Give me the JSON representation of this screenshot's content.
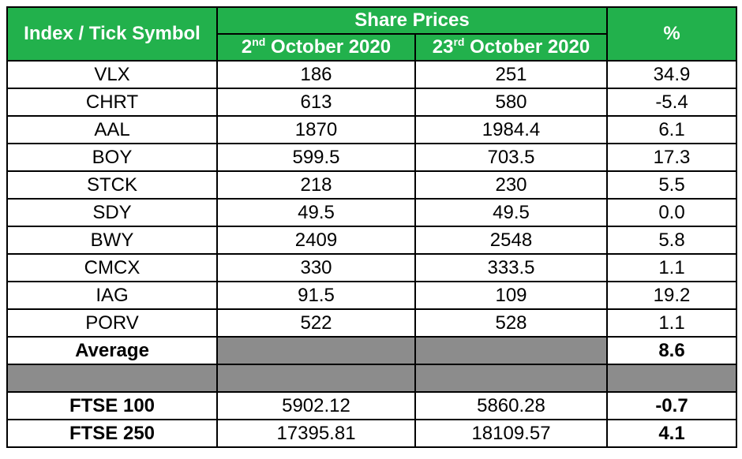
{
  "header": {
    "symbol_label": "Index / Tick Symbol",
    "share_prices_label": "Share Prices",
    "date1": {
      "day": "2",
      "suffix": "nd",
      "rest": " October 2020"
    },
    "date2": {
      "day": "23",
      "suffix": "rd",
      "rest": " October 2020"
    },
    "percent_label": "%"
  },
  "rows": [
    {
      "symbol": "VLX",
      "p1": "186",
      "p2": "251",
      "pct": "34.9"
    },
    {
      "symbol": "CHRT",
      "p1": "613",
      "p2": "580",
      "pct": "-5.4"
    },
    {
      "symbol": "AAL",
      "p1": "1870",
      "p2": "1984.4",
      "pct": "6.1"
    },
    {
      "symbol": "BOY",
      "p1": "599.5",
      "p2": "703.5",
      "pct": "17.3"
    },
    {
      "symbol": "STCK",
      "p1": "218",
      "p2": "230",
      "pct": "5.5"
    },
    {
      "symbol": "SDY",
      "p1": "49.5",
      "p2": "49.5",
      "pct": "0.0"
    },
    {
      "symbol": "BWY",
      "p1": "2409",
      "p2": "2548",
      "pct": "5.8"
    },
    {
      "symbol": "CMCX",
      "p1": "330",
      "p2": "333.5",
      "pct": "1.1"
    },
    {
      "symbol": "IAG",
      "p1": "91.5",
      "p2": "109",
      "pct": "19.2"
    },
    {
      "symbol": "PORV",
      "p1": "522",
      "p2": "528",
      "pct": "1.1"
    }
  ],
  "average": {
    "label": "Average",
    "pct": "8.6"
  },
  "indices": [
    {
      "symbol": "FTSE 100",
      "p1": "5902.12",
      "p2": "5860.28",
      "pct": "-0.7"
    },
    {
      "symbol": "FTSE 250",
      "p1": "17395.81",
      "p2": "18109.57",
      "pct": "4.1"
    }
  ],
  "colors": {
    "header_green": "#22b14c",
    "grey_fill": "#8c8c8c"
  }
}
